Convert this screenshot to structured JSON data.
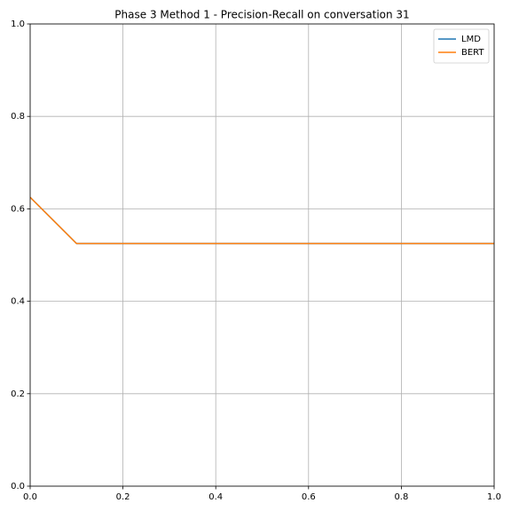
{
  "chart_data": {
    "type": "line",
    "title": "Phase 3 Method 1 - Precision-Recall on conversation 31",
    "x": [
      0,
      0.1,
      0.2,
      0.3,
      0.4,
      0.5,
      0.6,
      0.7,
      0.8,
      0.9,
      1
    ],
    "series": [
      {
        "name": "LMD",
        "color": "#1f77b4",
        "values": [
          0.625,
          0.525,
          0.525,
          0.525,
          0.525,
          0.525,
          0.525,
          0.525,
          0.525,
          0.525,
          0.525
        ]
      },
      {
        "name": "BERT",
        "color": "#ff7f0e",
        "values": [
          0.625,
          0.525,
          0.525,
          0.525,
          0.525,
          0.525,
          0.525,
          0.525,
          0.525,
          0.525,
          0.525
        ]
      }
    ],
    "xlim": [
      0,
      1
    ],
    "ylim": [
      0,
      1
    ],
    "xticks": [
      {
        "value": 0,
        "label": "0.0"
      },
      0.2,
      0.4,
      0.6,
      0.8,
      {
        "value": 1,
        "label": "1.0"
      }
    ],
    "yticks": [
      {
        "value": 0,
        "label": "0.0"
      },
      0.2,
      0.4,
      0.6,
      0.8,
      {
        "value": 1,
        "label": "1.0"
      }
    ],
    "grid": true,
    "legend": "upper-right"
  }
}
